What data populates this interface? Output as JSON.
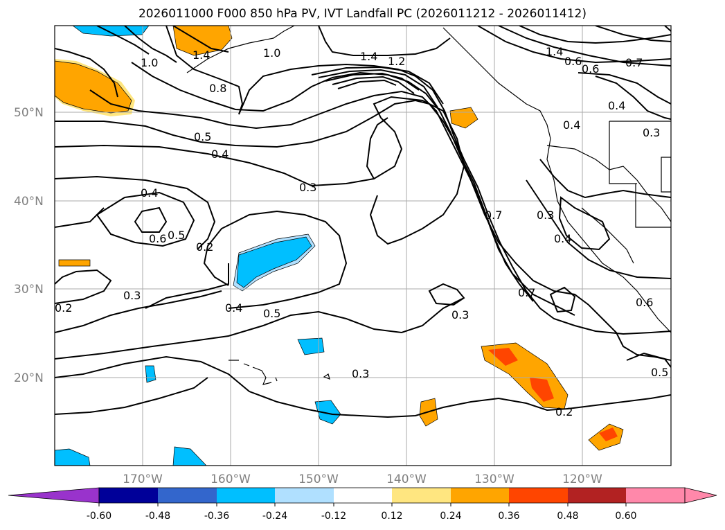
{
  "title": "2026011000 F000 850 hPa PV, IVT Landfall PC (2026011212 - 2026011412)",
  "lat_labels": [
    "50°N",
    "40°N",
    "30°N",
    "20°N"
  ],
  "lon_labels": [
    "170°W",
    "160°W",
    "150°W",
    "140°W",
    "130°W",
    "120°W"
  ],
  "contour_labels": [
    "1.0",
    "1.4",
    "1.0",
    "0.8",
    "1.4",
    "1.2",
    "1.4",
    "0.6",
    "0.6",
    "0.7",
    "0.4",
    "0.4",
    "0.3",
    "0.5",
    "0.4",
    "0.3",
    "0.4",
    "0.6",
    "0.5",
    "0.2",
    "0.7",
    "0.3",
    "0.4",
    "0.3",
    "0.2",
    "0.4",
    "0.5",
    "0.7",
    "0.3",
    "0.6",
    "0.3",
    "0.2",
    "0.5"
  ],
  "colorbar": {
    "tick_labels": [
      "-0.60",
      "-0.48",
      "-0.36",
      "-0.24",
      "-0.12",
      "0.12",
      "0.24",
      "0.36",
      "0.48",
      "0.60"
    ],
    "colors": [
      "#9933cc",
      "#000099",
      "#3366cc",
      "#00bfff",
      "#b0e0ff",
      "#ffffff",
      "#ffe680",
      "#ffa500",
      "#ff4500",
      "#b22222",
      "#ff88aa",
      "#ff88aa"
    ]
  }
}
